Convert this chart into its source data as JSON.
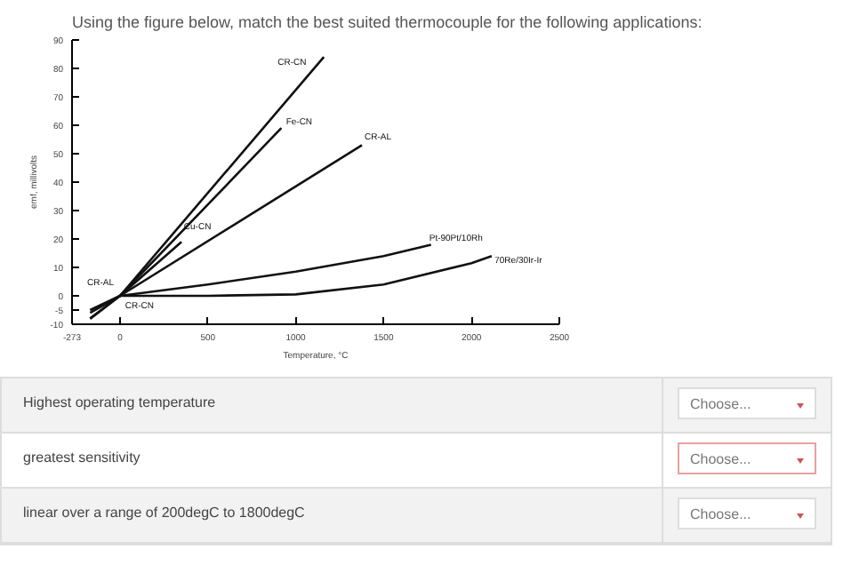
{
  "chart_data": {
    "type": "line",
    "title": "Using the figure below, match the best suited thermocouple for the following applications:",
    "xlabel": "Temperature, °C",
    "ylabel": "emf, millivolts",
    "series": [
      {
        "color": "#111111",
        "x": [
          -170,
          0,
          1160
        ],
        "values": [
          -8,
          0,
          84
        ]
      },
      {
        "color": "#111111",
        "x": [
          -170,
          0,
          918
        ],
        "values": [
          -8,
          0,
          59
        ]
      },
      {
        "color": "#111111",
        "x": [
          -170,
          0,
          1377
        ],
        "values": [
          -6,
          0,
          53
        ]
      },
      {
        "color": "#111111",
        "x": [
          -170,
          0,
          350
        ],
        "values": [
          -5,
          0,
          19
        ]
      },
      {
        "color": "#111111",
        "x": [
          0,
          500,
          1000,
          1500,
          1770
        ],
        "values": [
          0,
          4,
          8.5,
          14,
          18
        ]
      },
      {
        "color": "#111111",
        "x": [
          0,
          500,
          1000,
          1500,
          2000,
          2115
        ],
        "values": [
          0,
          0,
          0.5,
          4,
          11.5,
          14
        ]
      }
    ],
    "annotations": [
      {
        "text": "CR-CN",
        "x": 1100,
        "y": 80
      },
      {
        "text": "Fe-CN",
        "x": 918,
        "y": 59
      },
      {
        "text": "CR-AL",
        "x": 1377,
        "y": 53
      },
      {
        "text": "Cu-CN",
        "x": 350,
        "y": 19
      },
      {
        "text": "Pt-90Pt/10Rh",
        "x": 1770,
        "y": 18
      },
      {
        "text": "70Re/30Ir-Ir",
        "x": 2115,
        "y": 14
      },
      {
        "text": "CR-AL",
        "x": 0,
        "y": 0
      },
      {
        "text": "CR-CN",
        "x": 0,
        "y": 0
      },
      "Highest operating temperature",
      "Choose...",
      "greatest sensitivity",
      "Choose...",
      "linear over a range of 200degC to 1800degC",
      "Choose..."
    ],
    "xlim": [
      -273,
      2500
    ],
    "xticks": [
      -273,
      0,
      500,
      1000,
      1500,
      2000,
      2500
    ],
    "ylim": [
      -10,
      90
    ],
    "yticks": [
      -10,
      -5,
      0,
      10,
      20,
      30,
      40,
      50,
      60,
      70,
      80,
      90
    ],
    "grid": false,
    "marker": "none",
    "line_style": "solid"
  }
}
